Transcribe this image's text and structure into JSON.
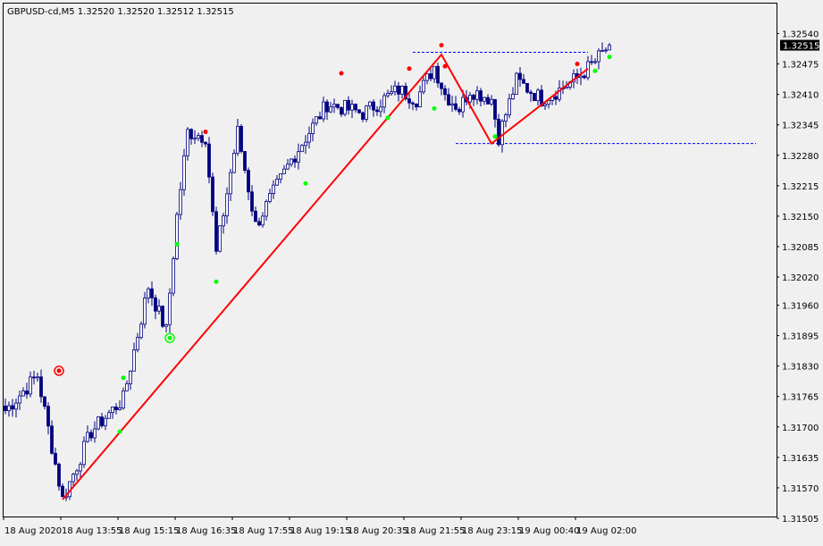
{
  "header": {
    "title": "GBPUSD-cd,M5  1.32520 1.32520 1.32512 1.32515"
  },
  "price_badge": "1.32515",
  "colors": {
    "background": "#f0f0f0",
    "frame": "#000000",
    "candle": "#000080",
    "zigzag": "#ff0000",
    "level_line": "#0000ff",
    "dot_up": "#00ff00",
    "dot_down": "#ff0000",
    "badge_bg": "#000000",
    "badge_text": "#ffffff"
  },
  "chart_data": {
    "type": "candlestick",
    "symbol": "GBPUSD-cd",
    "timeframe": "M5",
    "last_bar": {
      "open": 1.3252,
      "high": 1.3252,
      "low": 1.32512,
      "close": 1.32515
    },
    "ylim": [
      1.31505,
      1.3256
    ],
    "y_ticks": [
      "1.32540",
      "1.32475",
      "1.32410",
      "1.32345",
      "1.32280",
      "1.32215",
      "1.32150",
      "1.32085",
      "1.32020",
      "1.31960",
      "1.31895",
      "1.31830",
      "1.31765",
      "1.31700",
      "1.31635",
      "1.31570",
      "1.31505"
    ],
    "x_ticks": [
      "18 Aug 2020",
      "18 Aug 13:55",
      "18 Aug 15:15",
      "18 Aug 16:35",
      "18 Aug 17:55",
      "18 Aug 19:15",
      "18 Aug 20:35",
      "18 Aug 21:55",
      "18 Aug 23:15",
      "19 Aug 00:40",
      "19 Aug 02:00"
    ],
    "bar_count": 170,
    "grid": false,
    "key_prices": [
      {
        "bar": 0,
        "price": 1.31735
      },
      {
        "bar": 9,
        "price": 1.3181
      },
      {
        "bar": 16,
        "price": 1.31545
      },
      {
        "bar": 24,
        "price": 1.3169
      },
      {
        "bar": 33,
        "price": 1.3176
      },
      {
        "bar": 40,
        "price": 1.32
      },
      {
        "bar": 45,
        "price": 1.31905
      },
      {
        "bar": 48,
        "price": 1.3215
      },
      {
        "bar": 51,
        "price": 1.3233
      },
      {
        "bar": 56,
        "price": 1.3232
      },
      {
        "bar": 59,
        "price": 1.3207
      },
      {
        "bar": 65,
        "price": 1.3233
      },
      {
        "bar": 70,
        "price": 1.3213
      },
      {
        "bar": 80,
        "price": 1.3227
      },
      {
        "bar": 90,
        "price": 1.3239
      },
      {
        "bar": 100,
        "price": 1.3237
      },
      {
        "bar": 110,
        "price": 1.3242
      },
      {
        "bar": 115,
        "price": 1.324
      },
      {
        "bar": 120,
        "price": 1.3247
      },
      {
        "bar": 123,
        "price": 1.3241
      },
      {
        "bar": 127,
        "price": 1.3238
      },
      {
        "bar": 130,
        "price": 1.3242
      },
      {
        "bar": 136,
        "price": 1.324
      },
      {
        "bar": 138,
        "price": 1.3232
      },
      {
        "bar": 143,
        "price": 1.3244
      },
      {
        "bar": 150,
        "price": 1.324
      },
      {
        "bar": 155,
        "price": 1.3242
      },
      {
        "bar": 160,
        "price": 1.32445
      },
      {
        "bar": 165,
        "price": 1.3248
      },
      {
        "bar": 169,
        "price": 1.32515
      }
    ],
    "zigzag": [
      {
        "bar": 16,
        "price": 1.31545
      },
      {
        "bar": 122,
        "price": 1.32495
      },
      {
        "bar": 136,
        "price": 1.32305
      },
      {
        "bar": 163,
        "price": 1.32465
      }
    ],
    "levels": [
      {
        "price": 1.325,
        "from_bar": 114,
        "to_bar": 163
      },
      {
        "price": 1.32305,
        "from_bar": 126,
        "to_bar": 210
      }
    ],
    "signals": [
      {
        "bar": 15,
        "price": 1.3182,
        "side": "sell",
        "circled": true
      },
      {
        "bar": 32,
        "price": 1.3169,
        "side": "buy",
        "circled": false
      },
      {
        "bar": 33,
        "price": 1.31805,
        "side": "buy",
        "circled": false
      },
      {
        "bar": 46,
        "price": 1.3189,
        "side": "buy",
        "circled": true
      },
      {
        "bar": 48,
        "price": 1.3209,
        "side": "buy",
        "circled": false
      },
      {
        "bar": 56,
        "price": 1.3233,
        "side": "sell",
        "circled": false
      },
      {
        "bar": 59,
        "price": 1.3201,
        "side": "buy",
        "circled": false
      },
      {
        "bar": 84,
        "price": 1.3222,
        "side": "buy",
        "circled": false
      },
      {
        "bar": 94,
        "price": 1.32455,
        "side": "sell",
        "circled": false
      },
      {
        "bar": 107,
        "price": 1.3236,
        "side": "buy",
        "circled": false
      },
      {
        "bar": 113,
        "price": 1.32465,
        "side": "sell",
        "circled": false
      },
      {
        "bar": 120,
        "price": 1.3238,
        "side": "buy",
        "circled": false
      },
      {
        "bar": 122,
        "price": 1.32515,
        "side": "sell",
        "circled": false
      },
      {
        "bar": 123,
        "price": 1.3247,
        "side": "sell",
        "circled": false
      },
      {
        "bar": 137,
        "price": 1.3232,
        "side": "buy",
        "circled": false
      },
      {
        "bar": 160,
        "price": 1.32475,
        "side": "sell",
        "circled": false
      },
      {
        "bar": 165,
        "price": 1.3246,
        "side": "buy",
        "circled": false
      },
      {
        "bar": 169,
        "price": 1.3249,
        "side": "buy",
        "circled": false
      }
    ]
  }
}
